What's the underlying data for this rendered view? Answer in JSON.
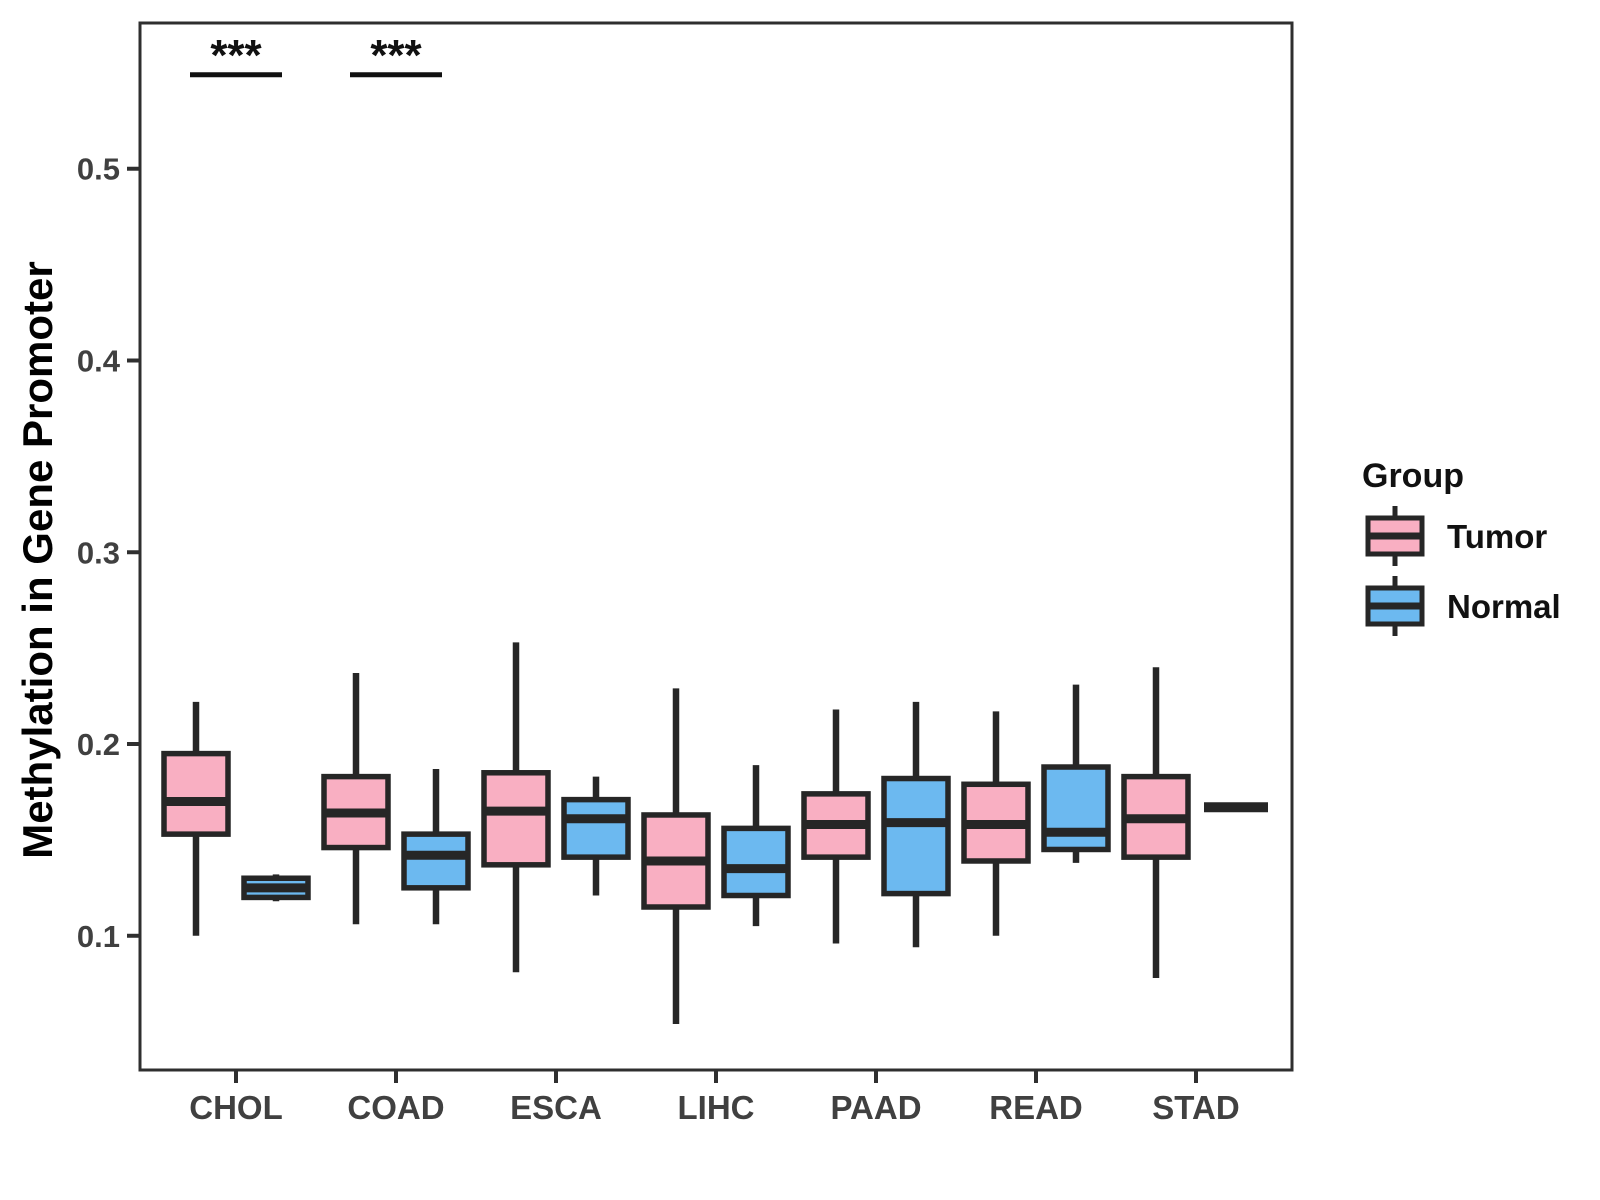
{
  "figure": {
    "ylabel": "Methylation in Gene Promoter"
  },
  "legend": {
    "title": "Group",
    "entries": [
      {
        "label": "Tumor",
        "color": "#F9AFC2"
      },
      {
        "label": "Normal",
        "color": "#6CB9F0"
      }
    ]
  },
  "colors": {
    "tumor_fill": "#F9AFC2",
    "normal_fill": "#6CB9F0",
    "box_stroke": "#262626",
    "axis_text": "#404040",
    "panel_border": "#2F2F2F",
    "annotation": "#111111",
    "legend_text": "#111111"
  },
  "chart_data": {
    "type": "boxplot",
    "title": "",
    "xlabel": "",
    "ylabel": "Methylation in Gene Promoter",
    "categories": [
      "CHOL",
      "COAD",
      "ESCA",
      "LIHC",
      "PAAD",
      "READ",
      "STAD"
    ],
    "ylim": [
      0.03,
      0.576
    ],
    "yticks": [
      0.1,
      0.2,
      0.3,
      0.4,
      0.5
    ],
    "grid": false,
    "legend_position": "right",
    "series": [
      {
        "name": "Tumor",
        "color": "#F9AFC2",
        "boxes": [
          {
            "category": "CHOL",
            "whisker_low": 0.1,
            "q1": 0.153,
            "median": 0.17,
            "q3": 0.195,
            "whisker_high": 0.222
          },
          {
            "category": "COAD",
            "whisker_low": 0.106,
            "q1": 0.146,
            "median": 0.164,
            "q3": 0.183,
            "whisker_high": 0.237
          },
          {
            "category": "ESCA",
            "whisker_low": 0.081,
            "q1": 0.137,
            "median": 0.165,
            "q3": 0.185,
            "whisker_high": 0.253
          },
          {
            "category": "LIHC",
            "whisker_low": 0.054,
            "q1": 0.115,
            "median": 0.139,
            "q3": 0.163,
            "whisker_high": 0.229
          },
          {
            "category": "PAAD",
            "whisker_low": 0.096,
            "q1": 0.141,
            "median": 0.158,
            "q3": 0.174,
            "whisker_high": 0.218
          },
          {
            "category": "READ",
            "whisker_low": 0.1,
            "q1": 0.139,
            "median": 0.158,
            "q3": 0.179,
            "whisker_high": 0.217
          },
          {
            "category": "STAD",
            "whisker_low": 0.078,
            "q1": 0.141,
            "median": 0.161,
            "q3": 0.183,
            "whisker_high": 0.24
          }
        ]
      },
      {
        "name": "Normal",
        "color": "#6CB9F0",
        "boxes": [
          {
            "category": "CHOL",
            "whisker_low": 0.118,
            "q1": 0.12,
            "median": 0.125,
            "q3": 0.13,
            "whisker_high": 0.132
          },
          {
            "category": "COAD",
            "whisker_low": 0.106,
            "q1": 0.125,
            "median": 0.142,
            "q3": 0.153,
            "whisker_high": 0.187
          },
          {
            "category": "ESCA",
            "whisker_low": 0.121,
            "q1": 0.141,
            "median": 0.161,
            "q3": 0.171,
            "whisker_high": 0.183
          },
          {
            "category": "LIHC",
            "whisker_low": 0.105,
            "q1": 0.121,
            "median": 0.135,
            "q3": 0.156,
            "whisker_high": 0.189
          },
          {
            "category": "PAAD",
            "whisker_low": 0.094,
            "q1": 0.122,
            "median": 0.159,
            "q3": 0.182,
            "whisker_high": 0.222
          },
          {
            "category": "READ",
            "whisker_low": 0.138,
            "q1": 0.145,
            "median": 0.154,
            "q3": 0.188,
            "whisker_high": 0.231
          },
          {
            "category": "STAD",
            "whisker_low": 0.167,
            "q1": 0.167,
            "median": 0.167,
            "q3": 0.167,
            "whisker_high": 0.167,
            "line_only": true
          }
        ]
      }
    ],
    "annotations": [
      {
        "category": "CHOL",
        "label": "***",
        "y": 0.549
      },
      {
        "category": "COAD",
        "label": "***",
        "y": 0.549
      }
    ]
  }
}
